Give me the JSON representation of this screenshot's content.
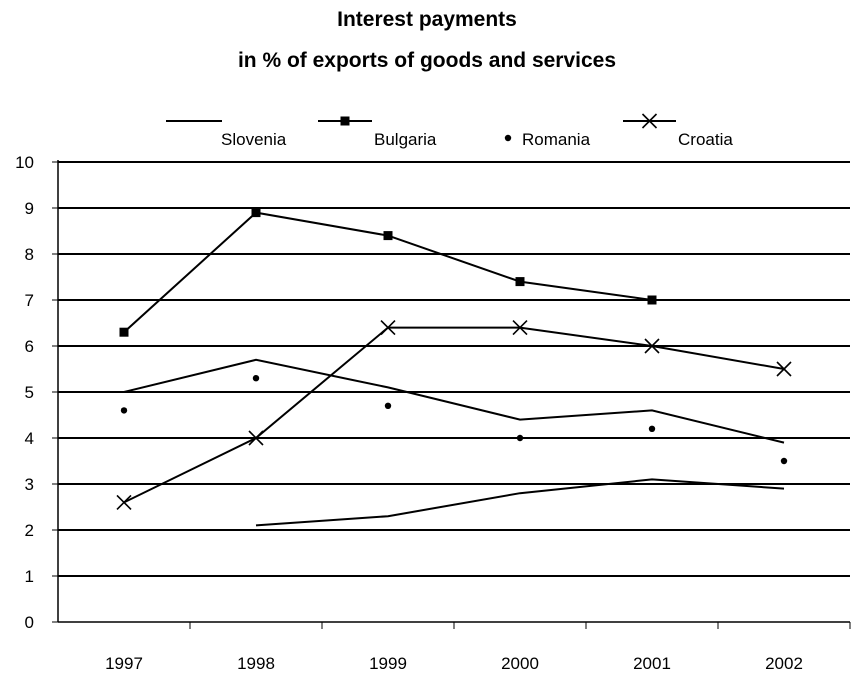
{
  "chart_data": {
    "type": "line",
    "title": [
      "Interest payments",
      "in % of exports of goods and services"
    ],
    "categories": [
      "1997",
      "1998",
      "1999",
      "2000",
      "2001",
      "2002"
    ],
    "ylim": [
      0,
      10
    ],
    "yticks": [
      "0",
      "1",
      "2",
      "3",
      "4",
      "5",
      "6",
      "7",
      "8",
      "9",
      "10"
    ],
    "grid": true,
    "legend_position": "top",
    "series": [
      {
        "name": "Slovenia",
        "marker": "none",
        "line": true,
        "color": "#000000",
        "values": [
          null,
          2.1,
          2.3,
          2.8,
          3.1,
          2.9
        ]
      },
      {
        "name": "Bulgaria",
        "marker": "square",
        "line": true,
        "color": "#000000",
        "values": [
          6.3,
          8.9,
          8.4,
          7.4,
          7.0,
          null
        ]
      },
      {
        "name": "Romania",
        "marker": "dot",
        "line": false,
        "color": "#000000",
        "values": [
          4.6,
          5.3,
          4.7,
          4.0,
          4.2,
          3.5
        ]
      },
      {
        "name": "Croatia",
        "marker": "x",
        "line": true,
        "color": "#000000",
        "values": [
          2.6,
          4.0,
          6.4,
          6.4,
          6.0,
          5.5
        ]
      },
      {
        "name": "",
        "marker": "none",
        "line": true,
        "color": "#000000",
        "values": [
          5.0,
          5.7,
          5.1,
          4.4,
          4.6,
          3.9
        ]
      }
    ]
  }
}
